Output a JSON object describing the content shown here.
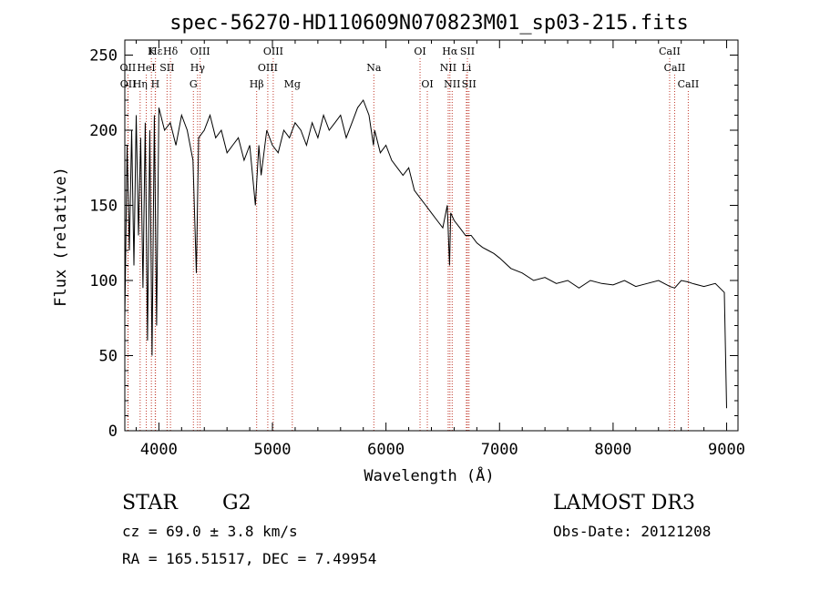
{
  "chart_data": {
    "type": "line",
    "title": "spec-56270-HD110609N070823M01_sp03-215.fits",
    "xlabel": "Wavelength (Å)",
    "ylabel": "Flux (relative)",
    "xlim": [
      3700,
      9100
    ],
    "ylim": [
      0,
      260
    ],
    "xticks": [
      4000,
      5000,
      6000,
      7000,
      8000,
      9000
    ],
    "yticks": [
      0,
      50,
      100,
      150,
      200,
      250
    ],
    "line_color": "#000000",
    "marker_color": "#c0392b",
    "series": [
      {
        "x": [
          3700,
          3720,
          3740,
          3760,
          3780,
          3800,
          3820,
          3840,
          3860,
          3880,
          3900,
          3920,
          3940,
          3960,
          3980,
          4000,
          4050,
          4100,
          4150,
          4200,
          4250,
          4300,
          4330,
          4350,
          4400,
          4450,
          4500,
          4550,
          4600,
          4650,
          4700,
          4750,
          4800,
          4850,
          4861,
          4880,
          4900,
          4950,
          5000,
          5050,
          5100,
          5150,
          5200,
          5250,
          5300,
          5350,
          5400,
          5450,
          5500,
          5550,
          5600,
          5650,
          5700,
          5750,
          5800,
          5850,
          5890,
          5900,
          5950,
          6000,
          6050,
          6100,
          6150,
          6200,
          6250,
          6300,
          6350,
          6400,
          6450,
          6500,
          6540,
          6560,
          6570,
          6600,
          6650,
          6700,
          6750,
          6800,
          6850,
          6900,
          6950,
          7000,
          7100,
          7200,
          7300,
          7400,
          7500,
          7600,
          7700,
          7800,
          7900,
          8000,
          8100,
          8200,
          8300,
          8400,
          8500,
          8542,
          8600,
          8662,
          8700,
          8800,
          8900,
          8980,
          9000
        ],
        "y": [
          75,
          190,
          120,
          200,
          110,
          210,
          130,
          195,
          95,
          205,
          60,
          200,
          50,
          210,
          70,
          215,
          200,
          205,
          190,
          210,
          200,
          180,
          105,
          195,
          200,
          210,
          195,
          200,
          185,
          190,
          195,
          180,
          190,
          150,
          165,
          190,
          170,
          200,
          190,
          185,
          200,
          195,
          205,
          200,
          190,
          205,
          195,
          210,
          200,
          205,
          210,
          195,
          205,
          215,
          220,
          210,
          190,
          200,
          185,
          190,
          180,
          175,
          170,
          175,
          160,
          155,
          150,
          145,
          140,
          135,
          150,
          110,
          145,
          140,
          135,
          130,
          130,
          125,
          122,
          120,
          118,
          115,
          108,
          105,
          100,
          102,
          98,
          100,
          95,
          100,
          98,
          97,
          100,
          96,
          98,
          100,
          96,
          95,
          100,
          99,
          98,
          96,
          98,
          92,
          15
        ]
      }
    ],
    "line_markers": [
      {
        "label": "Hε",
        "x": 3970,
        "row": 0
      },
      {
        "label": "K",
        "x": 3934,
        "row": 0
      },
      {
        "label": "Hδ",
        "x": 4102,
        "row": 0
      },
      {
        "label": "OIII",
        "x": 4363,
        "row": 0
      },
      {
        "label": "OIII",
        "x": 5007,
        "row": 0
      },
      {
        "label": "OI",
        "x": 6300,
        "row": 0
      },
      {
        "label": "Hα",
        "x": 6563,
        "row": 0
      },
      {
        "label": "SII",
        "x": 6717,
        "row": 0
      },
      {
        "label": "CaII",
        "x": 8498,
        "row": 0
      },
      {
        "label": "OII",
        "x": 3727,
        "row": 1
      },
      {
        "label": "HeI",
        "x": 3889,
        "row": 1
      },
      {
        "label": "SII",
        "x": 4072,
        "row": 1
      },
      {
        "label": "Hγ",
        "x": 4341,
        "row": 1
      },
      {
        "label": "OIII",
        "x": 4959,
        "row": 1
      },
      {
        "label": "Na",
        "x": 5893,
        "row": 1
      },
      {
        "label": "NII",
        "x": 6548,
        "row": 1
      },
      {
        "label": "Li",
        "x": 6708,
        "row": 1
      },
      {
        "label": "CaII",
        "x": 8542,
        "row": 1
      },
      {
        "label": "OII",
        "x": 3729,
        "row": 2
      },
      {
        "label": "Hη",
        "x": 3835,
        "row": 2
      },
      {
        "label": "H",
        "x": 3968,
        "row": 2
      },
      {
        "label": "G",
        "x": 4304,
        "row": 2
      },
      {
        "label": "Hβ",
        "x": 4861,
        "row": 2
      },
      {
        "label": "Mg",
        "x": 5175,
        "row": 2
      },
      {
        "label": "OI",
        "x": 6364,
        "row": 2
      },
      {
        "label": "NII",
        "x": 6583,
        "row": 2
      },
      {
        "label": "SII",
        "x": 6731,
        "row": 2
      },
      {
        "label": "CaII",
        "x": 8662,
        "row": 2
      }
    ]
  },
  "info": {
    "object_class": "STAR",
    "subclass": "G2",
    "survey": "LAMOST DR3",
    "redshift": "cz = 69.0 ± 3.8 km/s",
    "obs_date": "Obs-Date: 20121208",
    "coords": "RA = 165.51517, DEC =    7.49954"
  }
}
